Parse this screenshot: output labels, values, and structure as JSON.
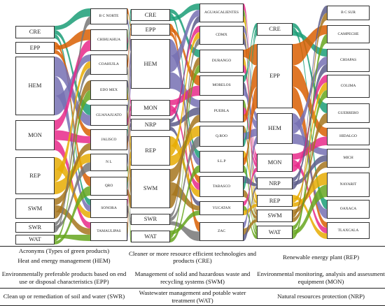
{
  "columns": [
    {
      "nodes": [
        "CRE",
        "EPP",
        "HEM",
        "MON",
        "REP",
        "SWM",
        "SWR",
        "WAT"
      ]
    },
    {
      "nodes": [
        "B C NORTE",
        "CHIHUAHUA",
        "COAHUILA",
        "EDO MEX",
        "GUANAJUATO",
        "JALISCO",
        "N L",
        "QRO",
        "SONORA",
        "TAMAULIPAS"
      ]
    },
    {
      "nodes": [
        "CRE",
        "EPP",
        "HEM",
        "MON",
        "NRP",
        "REP",
        "SWM",
        "SWR",
        "WAT"
      ]
    },
    {
      "nodes": [
        "AGUASCALIENTES",
        "CDMX",
        "DURANGO",
        "MORELOS",
        "PUEBLA",
        "Q.ROO",
        "S.L.P",
        "TABASCO",
        "YUCATAN",
        "ZAC"
      ]
    },
    {
      "nodes": [
        "CRE",
        "EPP",
        "HEM",
        "MON",
        "NRP",
        "REP",
        "SWM",
        "WAT"
      ]
    },
    {
      "nodes": [
        "B C SUR",
        "CAMPECHE",
        "CHIAPAS",
        "COLIMA",
        "GUERRERO",
        "HIDALGO",
        "MICH",
        "NAYARIT",
        "OAXACA",
        "TLAXCALA"
      ]
    }
  ],
  "table": {
    "caption": "Acronyms (Types of green products)",
    "rows": [
      [
        "Heat and energy management (HEM)",
        "Cleaner or more resource efficient technologies and products (CRE)",
        "Renewable energy plant (REP)"
      ],
      [
        "Environmentally preferable products based on end use or disposal characteristics (EPP)",
        "Management of solid and hazardous waste and recycling systems (SWM)",
        "Environmental monitoring, analysis and assessment equipment (MON)"
      ],
      [
        "Clean up or remediation of soil and water (SWR)",
        "Wastewater management and potable water treatment (WAT)",
        "Natural resources protection (NRP)"
      ]
    ]
  }
}
